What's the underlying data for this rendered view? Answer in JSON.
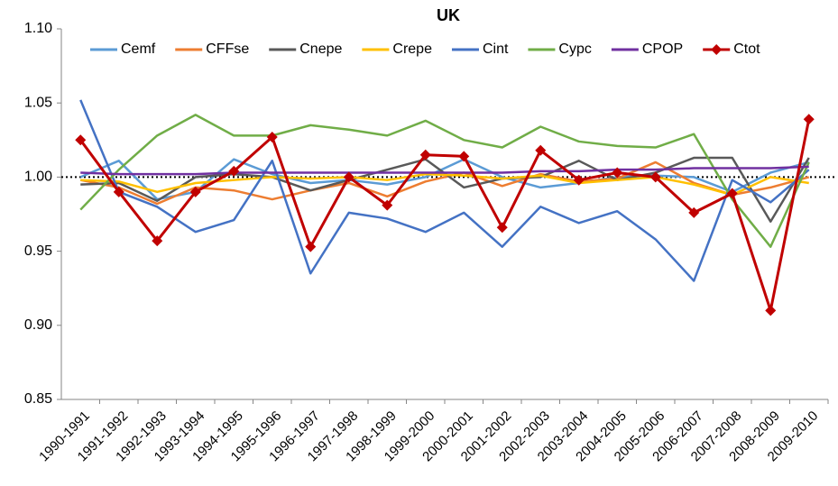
{
  "chart_data": {
    "type": "line",
    "title": "UK",
    "categories": [
      "1990-1991",
      "1991-1992",
      "1992-1993",
      "1993-1994",
      "1994-1995",
      "1995-1996",
      "1996-1997",
      "1997-1998",
      "1998-1999",
      "1999-2000",
      "2000-2001",
      "2001-2002",
      "2002-2003",
      "2003-2004",
      "2004-2005",
      "2005-2006",
      "2006-2007",
      "2007-2008",
      "2008-2009",
      "2009-2010"
    ],
    "ylim": [
      0.85,
      1.1
    ],
    "yticks": [
      {
        "value": 1.1,
        "label": "1.10"
      },
      {
        "value": 1.05,
        "label": "1.05"
      },
      {
        "value": 1.0,
        "label": "1.00"
      },
      {
        "value": 0.95,
        "label": "0.95"
      },
      {
        "value": 0.9,
        "label": "0.90"
      },
      {
        "value": 0.85,
        "label": "0.85"
      }
    ],
    "reference_line": 1.0,
    "legend": "top",
    "series": [
      {
        "name": "Cemf",
        "color": "#5b9bd5",
        "values": [
          1.0,
          1.011,
          0.985,
          0.99,
          1.012,
          1.002,
          0.996,
          0.998,
          0.995,
          1.0,
          1.012,
          1.0,
          0.993,
          0.996,
          1.0,
          1.001,
          1.0,
          0.99,
          1.003,
          1.01
        ]
      },
      {
        "name": "CFFse",
        "color": "#ed7d31",
        "values": [
          0.998,
          0.993,
          0.982,
          0.993,
          0.991,
          0.985,
          0.991,
          0.996,
          0.987,
          0.997,
          1.003,
          0.994,
          1.002,
          0.997,
          0.999,
          1.01,
          0.996,
          0.988,
          0.993,
          1.0
        ]
      },
      {
        "name": "Cnepe",
        "color": "#595959",
        "values": [
          0.995,
          0.996,
          0.984,
          1.0,
          1.002,
          1.0,
          0.991,
          0.998,
          1.005,
          1.012,
          0.993,
          0.999,
          1.0,
          1.011,
          0.998,
          1.003,
          1.013,
          1.013,
          0.97,
          1.013
        ]
      },
      {
        "name": "Crepe",
        "color": "#ffc000",
        "values": [
          0.998,
          0.997,
          0.99,
          0.996,
          0.998,
          1.0,
          0.999,
          1.0,
          0.998,
          1.002,
          1.001,
          0.999,
          1.001,
          0.996,
          0.998,
          1.0,
          0.995,
          0.988,
          1.0,
          0.996
        ]
      },
      {
        "name": "Cint",
        "color": "#4472c4",
        "values": [
          1.052,
          0.99,
          0.98,
          0.963,
          0.971,
          1.011,
          0.935,
          0.976,
          0.972,
          0.963,
          0.976,
          0.953,
          0.98,
          0.969,
          0.977,
          0.958,
          0.93,
          0.998,
          0.983,
          1.005
        ]
      },
      {
        "name": "Cypc",
        "color": "#70ad47",
        "values": [
          0.978,
          1.005,
          1.028,
          1.042,
          1.028,
          1.028,
          1.035,
          1.032,
          1.028,
          1.038,
          1.025,
          1.02,
          1.034,
          1.024,
          1.021,
          1.02,
          1.029,
          0.985,
          0.953,
          1.01
        ]
      },
      {
        "name": "CPOP",
        "color": "#7030a0",
        "values": [
          1.003,
          1.002,
          1.002,
          1.002,
          1.003,
          1.003,
          1.003,
          1.003,
          1.003,
          1.003,
          1.003,
          1.003,
          1.004,
          1.004,
          1.005,
          1.005,
          1.006,
          1.006,
          1.006,
          1.007
        ]
      },
      {
        "name": "Ctot",
        "color": "#c00000",
        "marker": "diamond",
        "values": [
          1.025,
          0.99,
          0.957,
          0.99,
          1.004,
          1.027,
          0.953,
          1.0,
          0.981,
          1.015,
          1.014,
          0.966,
          1.018,
          0.998,
          1.003,
          1.0,
          0.976,
          0.989,
          0.91,
          1.039
        ]
      }
    ]
  }
}
